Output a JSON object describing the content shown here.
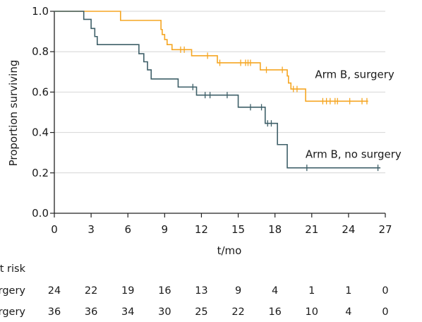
{
  "chart_data": {
    "type": "line",
    "subtype": "kaplan-meier",
    "title": "",
    "xlabel": "t/mo",
    "ylabel": "Proportion surviving",
    "xlim": [
      0,
      27
    ],
    "ylim": [
      0,
      1
    ],
    "xticks": [
      0,
      3,
      6,
      9,
      12,
      15,
      18,
      21,
      24,
      27
    ],
    "yticks": [
      "0.0",
      "0.2",
      "0.4",
      "0.6",
      "0.8",
      "1.0"
    ],
    "grid": "horizontal",
    "series": [
      {
        "name": "Arm B, surgery",
        "color": "#f5a623",
        "steps": [
          [
            0,
            1.0
          ],
          [
            5.4,
            0.955
          ],
          [
            8.7,
            0.91
          ],
          [
            8.8,
            0.885
          ],
          [
            9.0,
            0.86
          ],
          [
            9.2,
            0.835
          ],
          [
            9.6,
            0.81
          ],
          [
            11.2,
            0.78
          ],
          [
            13.3,
            0.745
          ],
          [
            16.8,
            0.71
          ],
          [
            19.0,
            0.68
          ],
          [
            19.1,
            0.645
          ],
          [
            19.3,
            0.615
          ],
          [
            20.5,
            0.555
          ]
        ],
        "censor": [
          10.3,
          10.6,
          12.5,
          13.5,
          15.2,
          15.6,
          15.8,
          16.0,
          17.3,
          18.6,
          19.5,
          19.8,
          21.9,
          22.2,
          22.5,
          22.9,
          23.1,
          24.1,
          25.1,
          25.5
        ],
        "end": 25.6,
        "label_pos": [
          24.5,
          0.67
        ]
      },
      {
        "name": "Arm B, no surgery",
        "color": "#3e5f68",
        "steps": [
          [
            0,
            1.0
          ],
          [
            2.4,
            0.96
          ],
          [
            3.0,
            0.915
          ],
          [
            3.3,
            0.875
          ],
          [
            3.5,
            0.835
          ],
          [
            6.9,
            0.79
          ],
          [
            7.3,
            0.75
          ],
          [
            7.6,
            0.71
          ],
          [
            7.9,
            0.665
          ],
          [
            10.1,
            0.625
          ],
          [
            11.6,
            0.585
          ],
          [
            15.0,
            0.525
          ],
          [
            17.2,
            0.445
          ],
          [
            18.2,
            0.34
          ],
          [
            19.0,
            0.225
          ]
        ],
        "censor": [
          11.3,
          12.3,
          12.7,
          14.1,
          16.0,
          16.9,
          17.4,
          17.7,
          20.6,
          26.4
        ],
        "end": 26.6,
        "label_pos": [
          24.4,
          0.275
        ]
      }
    ]
  },
  "risk_table": {
    "header": "Number at risk",
    "rows": [
      {
        "label": "Arm B, surgery",
        "values": [
          "24",
          "22",
          "19",
          "16",
          "13",
          "9",
          "4",
          "1",
          "1",
          "0"
        ]
      },
      {
        "label": "Arm B, no surgery",
        "values": [
          "36",
          "36",
          "34",
          "30",
          "25",
          "22",
          "16",
          "10",
          "4",
          "0"
        ]
      }
    ]
  }
}
